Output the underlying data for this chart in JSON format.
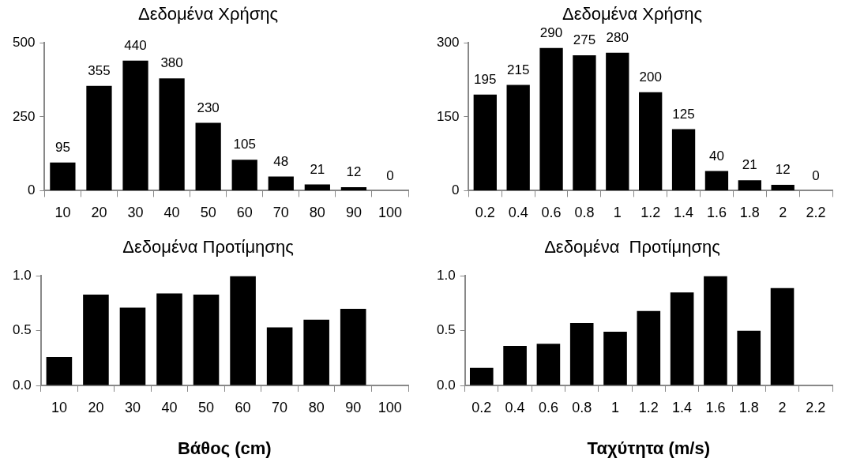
{
  "chart_data": [
    {
      "type": "bar",
      "title": "Δεδομένα Χρήσης",
      "categories": [
        "10",
        "20",
        "30",
        "40",
        "50",
        "60",
        "70",
        "80",
        "90",
        "100"
      ],
      "values": [
        95,
        355,
        440,
        380,
        230,
        105,
        48,
        21,
        12,
        0
      ],
      "color": "#000000",
      "ylim": [
        0,
        500
      ],
      "yticks": [
        0,
        250,
        500
      ],
      "data_labels": true,
      "grid": false
    },
    {
      "type": "bar",
      "title": "Δεδομένα Χρήσης",
      "categories": [
        "0.2",
        "0.4",
        "0.6",
        "0.8",
        "1",
        "1.2",
        "1.4",
        "1.6",
        "1.8",
        "2",
        "2.2"
      ],
      "values": [
        195,
        215,
        290,
        275,
        280,
        200,
        125,
        40,
        21,
        12,
        0
      ],
      "color": "#000000",
      "ylim": [
        0,
        300
      ],
      "yticks": [
        0,
        150,
        300
      ],
      "data_labels": true,
      "grid": false
    },
    {
      "type": "bar",
      "title": "Δεδομένα Προτίμησης",
      "xlabel": "Βάθος (cm)",
      "categories": [
        "10",
        "20",
        "30",
        "40",
        "50",
        "60",
        "70",
        "80",
        "90",
        "100"
      ],
      "values": [
        0.26,
        0.83,
        0.71,
        0.84,
        0.83,
        1.0,
        0.53,
        0.6,
        0.7,
        null
      ],
      "color": "#000000",
      "ylim": [
        0,
        1
      ],
      "yticks": [
        {
          "value": 0,
          "label": "0.0"
        },
        {
          "value": 0.5,
          "label": "0.5"
        },
        {
          "value": 1,
          "label": "1.0"
        }
      ],
      "grid": false
    },
    {
      "type": "bar",
      "title": "Δεδομένα  Προτίμησης",
      "xlabel": "Ταχύτητα (m/s)",
      "categories": [
        "0.2",
        "0.4",
        "0.6",
        "0.8",
        "1",
        "1.2",
        "1.4",
        "1.6",
        "1.8",
        "2",
        "2.2"
      ],
      "values": [
        0.16,
        0.36,
        0.38,
        0.57,
        0.49,
        0.68,
        0.85,
        1.0,
        0.5,
        0.89,
        null
      ],
      "color": "#000000",
      "ylim": [
        0,
        1
      ],
      "yticks": [
        {
          "value": 0,
          "label": "0.0"
        },
        {
          "value": 0.5,
          "label": "0.5"
        },
        {
          "value": 1,
          "label": "1.0"
        }
      ],
      "grid": false
    }
  ]
}
